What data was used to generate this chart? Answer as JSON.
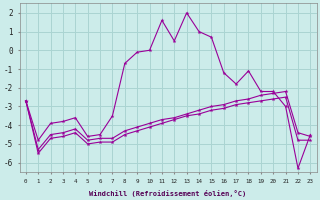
{
  "xlabel": "Windchill (Refroidissement éolien,°C)",
  "background_color": "#ccecea",
  "grid_color": "#aad4d2",
  "line_color": "#990099",
  "xlim": [
    -0.5,
    23.5
  ],
  "ylim": [
    -6.5,
    2.5
  ],
  "yticks": [
    -6,
    -5,
    -4,
    -3,
    -2,
    -1,
    0,
    1,
    2
  ],
  "xticks": [
    0,
    1,
    2,
    3,
    4,
    5,
    6,
    7,
    8,
    9,
    10,
    11,
    12,
    13,
    14,
    15,
    16,
    17,
    18,
    19,
    20,
    21,
    22,
    23
  ],
  "main_x": [
    0,
    1,
    2,
    3,
    4,
    5,
    6,
    7,
    8,
    9,
    10,
    11,
    12,
    13,
    14,
    15,
    16,
    17,
    18,
    19,
    20,
    21,
    22,
    23
  ],
  "main_y": [
    -2.7,
    -4.8,
    -3.9,
    -3.8,
    -3.6,
    -4.6,
    -4.5,
    -3.5,
    -0.7,
    -0.1,
    0.0,
    1.6,
    0.5,
    2.0,
    1.0,
    0.7,
    -1.2,
    -1.8,
    -1.1,
    -2.2,
    -2.2,
    -3.0,
    -6.3,
    -4.5
  ],
  "line2_x": [
    0,
    1,
    2,
    3,
    4,
    5,
    6,
    7,
    8,
    9,
    10,
    11,
    12,
    13,
    14,
    15,
    16,
    17,
    18,
    19,
    20,
    21,
    22,
    23
  ],
  "line2_y": [
    -2.7,
    -5.3,
    -4.5,
    -4.4,
    -4.2,
    -4.8,
    -4.7,
    -4.7,
    -4.3,
    -4.1,
    -3.9,
    -3.7,
    -3.6,
    -3.4,
    -3.2,
    -3.0,
    -2.9,
    -2.7,
    -2.6,
    -2.4,
    -2.3,
    -2.2,
    -4.4,
    -4.6
  ],
  "line3_x": [
    0,
    1,
    2,
    3,
    4,
    5,
    6,
    7,
    8,
    9,
    10,
    11,
    12,
    13,
    14,
    15,
    16,
    17,
    18,
    19,
    20,
    21,
    22,
    23
  ],
  "line3_y": [
    -2.7,
    -5.5,
    -4.7,
    -4.6,
    -4.4,
    -5.0,
    -4.9,
    -4.9,
    -4.5,
    -4.3,
    -4.1,
    -3.9,
    -3.7,
    -3.5,
    -3.4,
    -3.2,
    -3.1,
    -2.9,
    -2.8,
    -2.7,
    -2.6,
    -2.5,
    -4.8,
    -4.8
  ]
}
